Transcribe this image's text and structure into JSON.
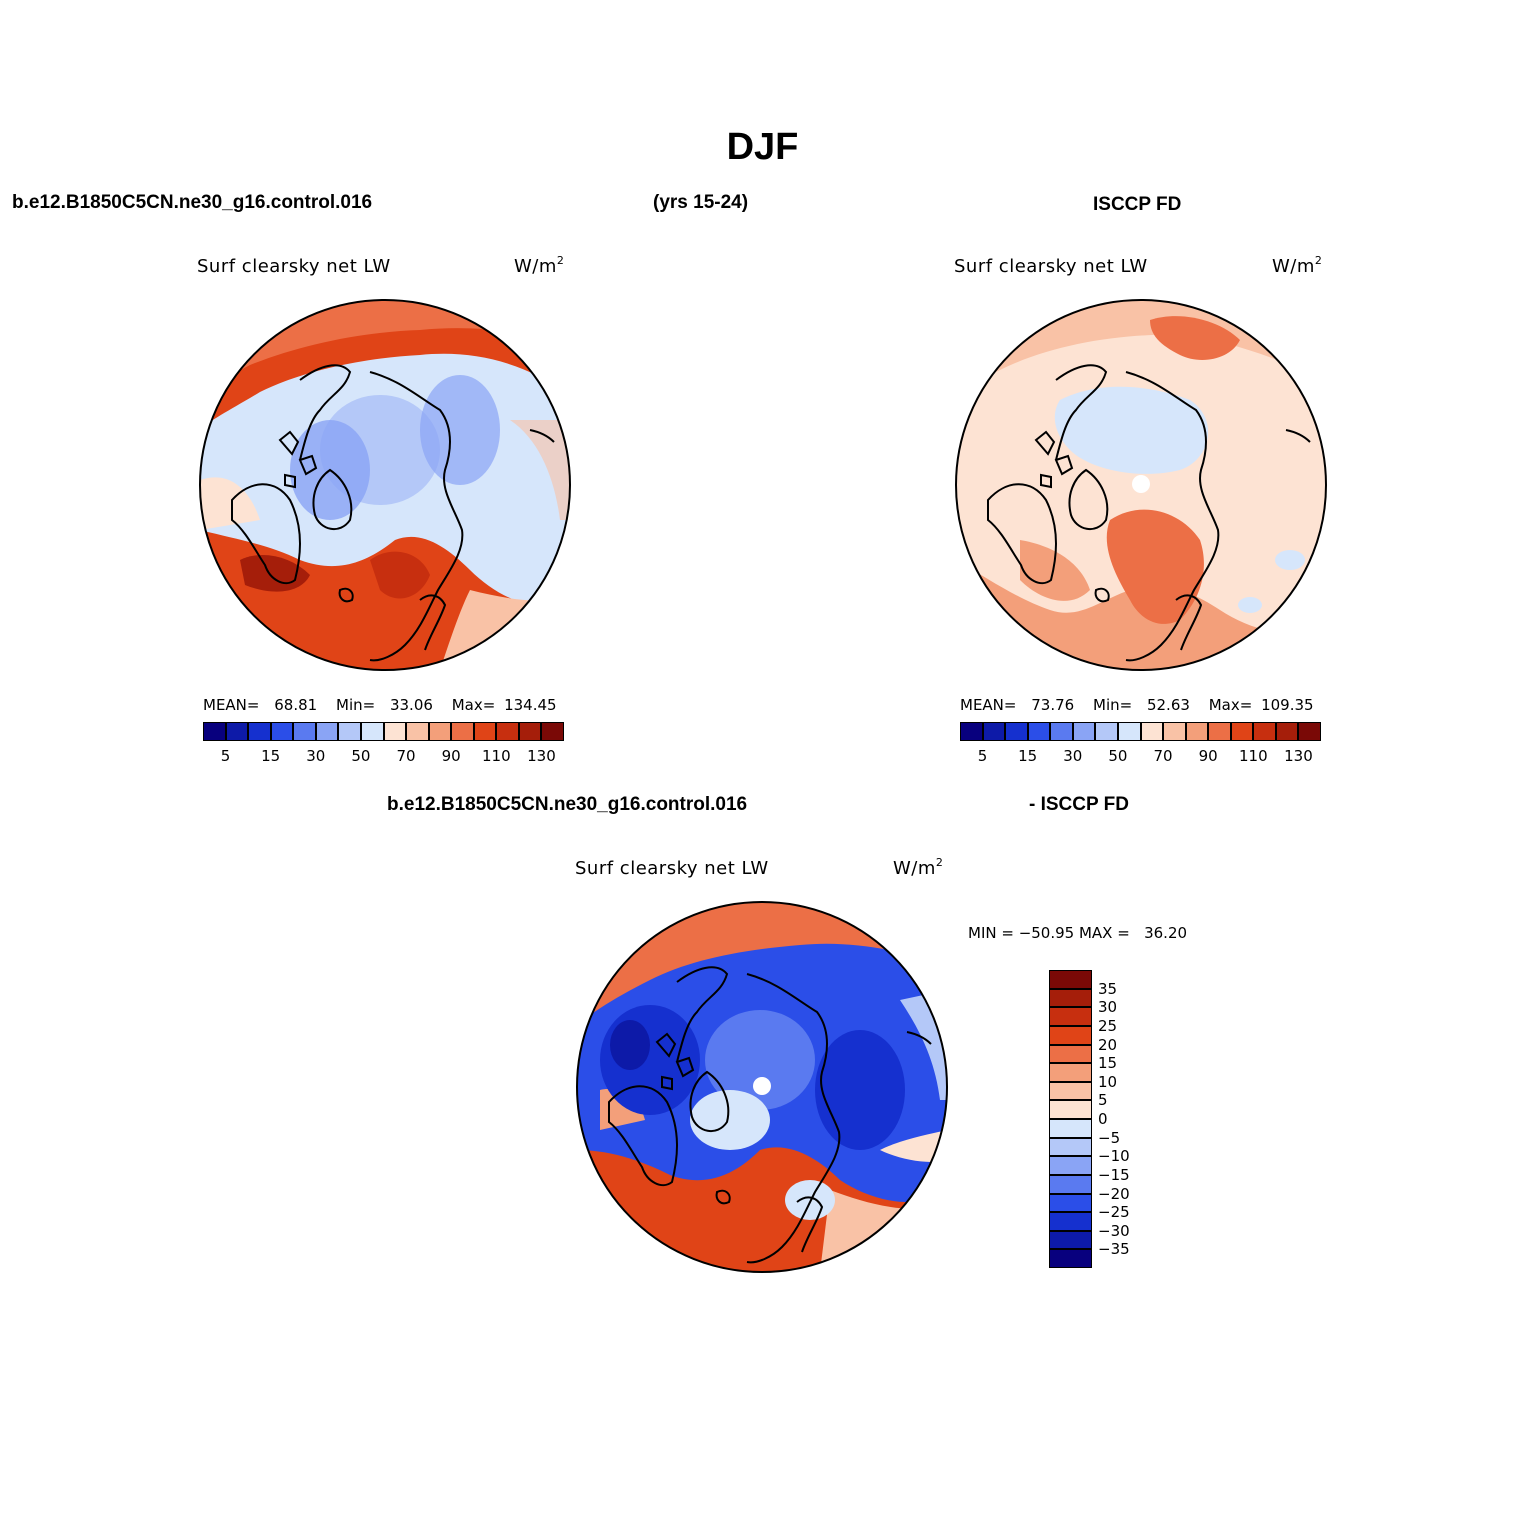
{
  "title": "DJF",
  "header": {
    "case_name": "b.e12.B1850C5CN.ne30_g16.control.016",
    "years": "(yrs 15-24)",
    "obs_name": "ISCCP FD"
  },
  "diff_header": {
    "case_name": "b.e12.B1850C5CN.ne30_g16.control.016",
    "obs_name": "- ISCCP FD"
  },
  "panels": {
    "model": {
      "field": "Surf clearsky net LW",
      "units": "W/m",
      "units_sup": "2",
      "mean_label": "MEAN=",
      "mean": "68.81",
      "min_label": "Min=",
      "min": "33.06",
      "max_label": "Max=",
      "max": "134.45"
    },
    "obs": {
      "field": "Surf clearsky net LW",
      "units": "W/m",
      "units_sup": "2",
      "mean_label": "MEAN=",
      "mean": "73.76",
      "min_label": "Min=",
      "min": "52.63",
      "max_label": "Max=",
      "max": "109.35"
    },
    "diff": {
      "field": "Surf clearsky net LW",
      "units": "W/m",
      "units_sup": "2",
      "minmax": "MIN = −50.95 MAX =   36.20"
    }
  },
  "colorbar_horizontal": {
    "colors": [
      "#08007e",
      "#0d1aa8",
      "#1530cf",
      "#2b4ee8",
      "#5a7af0",
      "#8aa4f5",
      "#b4c8f8",
      "#d6e6fb",
      "#fde3d3",
      "#f9c2a6",
      "#f39f7a",
      "#ec6f46",
      "#e04417",
      "#c72f0f",
      "#a51e0a",
      "#7a0906"
    ],
    "labels": [
      "5",
      "15",
      "30",
      "50",
      "70",
      "90",
      "110",
      "130"
    ]
  },
  "colorbar_vertical": {
    "colors": [
      "#7a0906",
      "#a51e0a",
      "#c72f0f",
      "#e04417",
      "#ec6f46",
      "#f39f7a",
      "#f9c2a6",
      "#fde3d3",
      "#d6e6fb",
      "#b4c8f8",
      "#8aa4f5",
      "#5a7af0",
      "#2b4ee8",
      "#1530cf",
      "#0d1aa8",
      "#08007e"
    ],
    "labels": [
      "35",
      "30",
      "25",
      "20",
      "15",
      "10",
      "5",
      "0",
      "−5",
      "−10",
      "−15",
      "−20",
      "−25",
      "−30",
      "−35"
    ]
  }
}
